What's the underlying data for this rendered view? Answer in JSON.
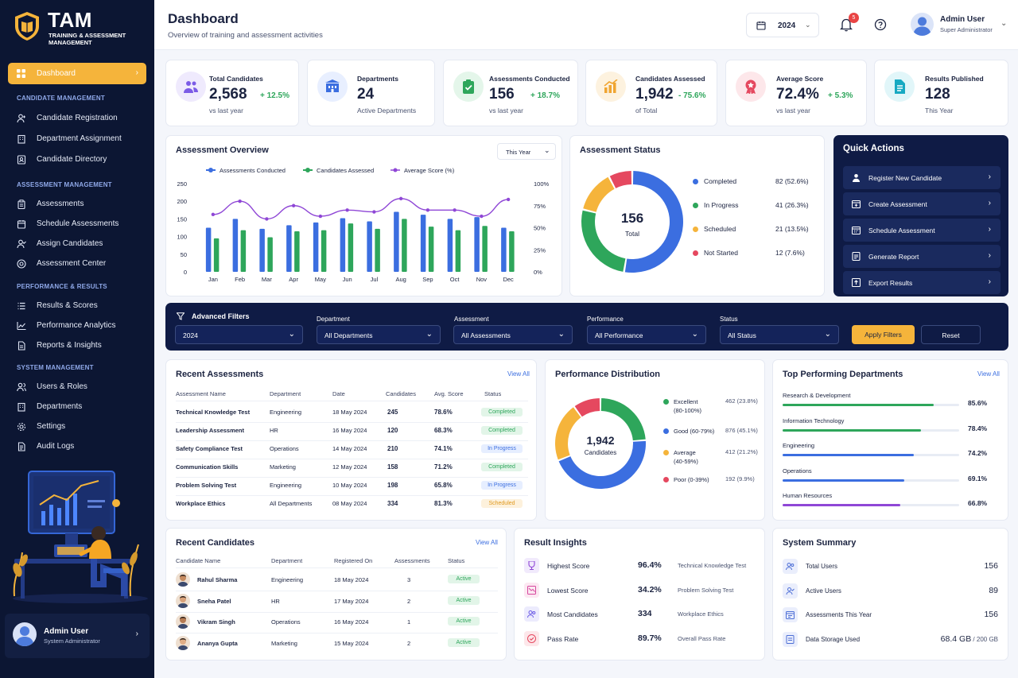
{
  "app": {
    "name": "TAM",
    "subtitle": "TRAINING & ASSESSMENT MANAGEMENT"
  },
  "sidebar": {
    "active": "Dashboard",
    "sections": [
      {
        "title": "CANDIDATE MANAGEMENT",
        "items": [
          "Candidate Registration",
          "Department Assignment",
          "Candidate Directory"
        ]
      },
      {
        "title": "ASSESSMENT MANAGEMENT",
        "items": [
          "Assessments",
          "Schedule Assessments",
          "Assign Candidates",
          "Assessment Center"
        ]
      },
      {
        "title": "PERFORMANCE & RESULTS",
        "items": [
          "Results & Scores",
          "Performance Analytics",
          "Reports & Insights"
        ]
      },
      {
        "title": "SYSTEM MANAGEMENT",
        "items": [
          "Users & Roles",
          "Departments",
          "Settings",
          "Audit Logs"
        ]
      }
    ],
    "user": {
      "name": "Admin User",
      "role": "System Administrator"
    }
  },
  "header": {
    "title": "Dashboard",
    "subtitle": "Overview of training and assessment activities",
    "year": "2024",
    "notifications": "5",
    "user_name": "Admin User",
    "user_role": "Super Administrator"
  },
  "stats": [
    {
      "label": "Total Candidates",
      "value": "2,568",
      "delta": "+ 12.5%",
      "sub": "vs last year",
      "color": "#7b5be6",
      "bg": "#efeafd"
    },
    {
      "label": "Departments",
      "value": "24",
      "delta": "",
      "sub": "Active Departments",
      "color": "#3b6ee0",
      "bg": "#e8efff"
    },
    {
      "label": "Assessments Conducted",
      "value": "156",
      "delta": "+ 18.7%",
      "sub": "vs last year",
      "color": "#2ea65b",
      "bg": "#e4f6ea"
    },
    {
      "label": "Candidates Assessed",
      "value": "1,942",
      "delta": "- 75.6%",
      "sub": "of Total",
      "color": "#f0a531",
      "bg": "#fdf2df"
    },
    {
      "label": "Average Score",
      "value": "72.4%",
      "delta": "+ 5.3%",
      "sub": "vs last year",
      "color": "#e5485f",
      "bg": "#fde7ea"
    },
    {
      "label": "Results Published",
      "value": "128",
      "delta": "",
      "sub": "This Year",
      "color": "#17a9c2",
      "bg": "#e1f6f9"
    }
  ],
  "overview": {
    "title": "Assessment Overview",
    "period": "This Year"
  },
  "chart_data": {
    "type": "bar",
    "categories": [
      "Jan",
      "Feb",
      "Mar",
      "Apr",
      "May",
      "Jun",
      "Jul",
      "Aug",
      "Sep",
      "Oct",
      "Nov",
      "Dec"
    ],
    "series": [
      {
        "name": "Assessments Conducted",
        "values": [
          125,
          150,
          122,
          132,
          140,
          152,
          143,
          170,
          162,
          150,
          155,
          125
        ],
        "color": "#3b6ee0"
      },
      {
        "name": "Candidates Assessed",
        "values": [
          95,
          118,
          98,
          115,
          118,
          137,
          122,
          150,
          128,
          118,
          130,
          115
        ],
        "color": "#2ea65b"
      },
      {
        "name": "Average Score (%)",
        "values": [
          65,
          80,
          60,
          75,
          63,
          70,
          68,
          83,
          70,
          70,
          63,
          82
        ],
        "axis": "right",
        "type": "line",
        "color": "#8f47d6"
      }
    ],
    "ylim": [
      0,
      250
    ],
    "y2lim": [
      0,
      100
    ],
    "yticks": [
      "250",
      "200",
      "150",
      "100",
      "50",
      "0"
    ],
    "y2ticks": [
      "100%",
      "75%",
      "50%",
      "25%",
      "0%"
    ]
  },
  "status": {
    "title": "Assessment Status",
    "total": "156",
    "total_label": "Total",
    "items": [
      {
        "label": "Completed",
        "value": "82 (52.6%)",
        "pct": 52.6,
        "color": "#3b6ee0"
      },
      {
        "label": "In Progress",
        "value": "41 (26.3%)",
        "pct": 26.3,
        "color": "#2ea65b"
      },
      {
        "label": "Scheduled",
        "value": "21 (13.5%)",
        "pct": 13.5,
        "color": "#f5b43b"
      },
      {
        "label": "Not Started",
        "value": "12 (7.6%)",
        "pct": 7.6,
        "color": "#e5485f"
      }
    ]
  },
  "quick_actions": {
    "title": "Quick Actions",
    "items": [
      "Register New Candidate",
      "Create Assessment",
      "Schedule Assessment",
      "Generate Report",
      "Export Results"
    ]
  },
  "filters": {
    "title": "Advanced Filters",
    "year": "2024",
    "fields": [
      {
        "label": "Department",
        "value": "All Departments"
      },
      {
        "label": "Assessment",
        "value": "All Assessments"
      },
      {
        "label": "Performance",
        "value": "All Performance"
      },
      {
        "label": "Status",
        "value": "All Status"
      }
    ],
    "apply": "Apply Filters",
    "reset": "Reset"
  },
  "recent_assessments": {
    "title": "Recent Assessments",
    "view_all": "View All",
    "columns": [
      "Assessment Name",
      "Department",
      "Date",
      "Candidates",
      "Avg. Score",
      "Status"
    ],
    "rows": [
      [
        "Technical Knowledge Test",
        "Engineering",
        "18 May 2024",
        "245",
        "78.6%",
        "Completed"
      ],
      [
        "Leadership Assessment",
        "HR",
        "16 May 2024",
        "120",
        "68.3%",
        "Completed"
      ],
      [
        "Safety Compliance Test",
        "Operations",
        "14 May 2024",
        "210",
        "74.1%",
        "In Progress"
      ],
      [
        "Communication Skills",
        "Marketing",
        "12 May 2024",
        "158",
        "71.2%",
        "Completed"
      ],
      [
        "Problem Solving Test",
        "Engineering",
        "10 May 2024",
        "198",
        "65.8%",
        "In Progress"
      ],
      [
        "Workplace Ethics",
        "All Departments",
        "08 May 2024",
        "334",
        "81.3%",
        "Scheduled"
      ]
    ]
  },
  "performance": {
    "title": "Performance Distribution",
    "total": "1,942",
    "total_label": "Candidates",
    "items": [
      {
        "label": "Excellent",
        "range": "(80-100%)",
        "value": "462 (23.8%)",
        "pct": 23.8,
        "color": "#2ea65b"
      },
      {
        "label": "Good (60-79%)",
        "range": "",
        "value": "876 (45.1%)",
        "pct": 45.1,
        "color": "#3b6ee0"
      },
      {
        "label": "Average",
        "range": "(40-59%)",
        "value": "412 (21.2%)",
        "pct": 21.2,
        "color": "#f5b43b"
      },
      {
        "label": "Poor (0-39%)",
        "range": "",
        "value": "192 (9.9%)",
        "pct": 9.9,
        "color": "#e5485f"
      }
    ]
  },
  "top_departments": {
    "title": "Top Performing Departments",
    "view_all": "View All",
    "items": [
      {
        "name": "Research & Development",
        "value": "85.6%",
        "pct": 85.6,
        "color": "#2ea65b"
      },
      {
        "name": "Information Technology",
        "value": "78.4%",
        "pct": 78.4,
        "color": "#2ea65b"
      },
      {
        "name": "Engineering",
        "value": "74.2%",
        "pct": 74.2,
        "color": "#3b6ee0"
      },
      {
        "name": "Operations",
        "value": "69.1%",
        "pct": 69.1,
        "color": "#3b6ee0"
      },
      {
        "name": "Human Resources",
        "value": "66.8%",
        "pct": 66.8,
        "color": "#8f47d6"
      }
    ]
  },
  "recent_candidates": {
    "title": "Recent Candidates",
    "view_all": "View All",
    "columns": [
      "Candidate Name",
      "Department",
      "Registered On",
      "Assessments",
      "Status"
    ],
    "rows": [
      [
        "Rahul Sharma",
        "Engineering",
        "18 May 2024",
        "3",
        "Active"
      ],
      [
        "Sneha Patel",
        "HR",
        "17 May 2024",
        "2",
        "Active"
      ],
      [
        "Vikram Singh",
        "Operations",
        "16 May 2024",
        "1",
        "Active"
      ],
      [
        "Ananya Gupta",
        "Marketing",
        "15 May 2024",
        "2",
        "Active"
      ]
    ]
  },
  "insights": {
    "title": "Result Insights",
    "items": [
      {
        "label": "Highest Score",
        "value": "96.4%",
        "note": "Technical Knowledge Test"
      },
      {
        "label": "Lowest Score",
        "value": "34.2%",
        "note": "Problem Solving Test"
      },
      {
        "label": "Most Candidates",
        "value": "334",
        "note": "Workplace Ethics"
      },
      {
        "label": "Pass Rate",
        "value": "89.7%",
        "note": "Overall Pass Rate"
      }
    ]
  },
  "summary": {
    "title": "System Summary",
    "items": [
      {
        "label": "Total Users",
        "value": "156",
        "extra": ""
      },
      {
        "label": "Active Users",
        "value": "89",
        "extra": ""
      },
      {
        "label": "Assessments This Year",
        "value": "156",
        "extra": ""
      },
      {
        "label": "Data Storage Used",
        "value": "68.4 GB",
        "extra": " / 200 GB"
      }
    ]
  }
}
